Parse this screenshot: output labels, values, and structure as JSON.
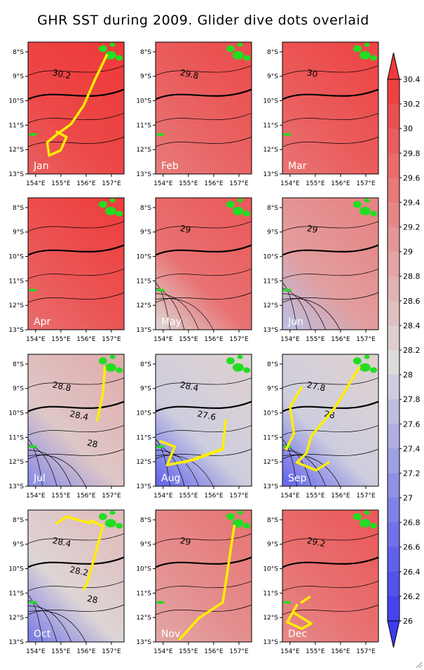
{
  "chart_data": {
    "type": "heatmap",
    "title": "GHR SST during 2009. Glider dive dots overlaid",
    "x_ticks": [
      "154°E",
      "155°E",
      "156°E",
      "157°E"
    ],
    "y_ticks": [
      "8°S",
      "9°S",
      "10°S",
      "11°S",
      "12°S",
      "13°S"
    ],
    "xlim": [
      153.7,
      157.5
    ],
    "ylim": [
      -13,
      -7.6
    ],
    "colorbar": {
      "ticks": [
        30.4,
        30.2,
        30,
        29.8,
        29.6,
        29.4,
        29.2,
        29,
        28.8,
        28.6,
        28.4,
        28.2,
        28,
        27.8,
        27.6,
        27.4,
        27.2,
        27,
        26.8,
        26.6,
        26.4,
        26.2,
        26
      ],
      "range": [
        26,
        30.4
      ],
      "colors": {
        "low": "#3b3cf0",
        "mid": "#dcdcdc",
        "high": "#ee3a3a"
      }
    },
    "panels": [
      {
        "month": "Jan",
        "mean_sst": 30.2,
        "contour_labels": [
          "30.2"
        ]
      },
      {
        "month": "Feb",
        "mean_sst": 29.8,
        "contour_labels": [
          "29.8"
        ]
      },
      {
        "month": "Mar",
        "mean_sst": 29.9,
        "contour_labels": [
          "30"
        ]
      },
      {
        "month": "Apr",
        "mean_sst": 30.0,
        "contour_labels": []
      },
      {
        "month": "May",
        "mean_sst": 29.6,
        "contour_labels": [
          "29"
        ]
      },
      {
        "month": "Jun",
        "mean_sst": 29.0,
        "contour_labels": [
          "29"
        ]
      },
      {
        "month": "Jul",
        "mean_sst": 28.4,
        "contour_labels": [
          "28.8",
          "28.4",
          "28"
        ]
      },
      {
        "month": "Aug",
        "mean_sst": 27.9,
        "contour_labels": [
          "28.4",
          "27.6"
        ]
      },
      {
        "month": "Sep",
        "mean_sst": 27.9,
        "contour_labels": [
          "27.8",
          "28"
        ]
      },
      {
        "month": "Oct",
        "mean_sst": 28.2,
        "contour_labels": [
          "28.4",
          "28.2",
          "28"
        ]
      },
      {
        "month": "Nov",
        "mean_sst": 29.2,
        "contour_labels": [
          "29"
        ]
      },
      {
        "month": "Dec",
        "mean_sst": 29.6,
        "contour_labels": [
          "29.2"
        ]
      }
    ]
  }
}
